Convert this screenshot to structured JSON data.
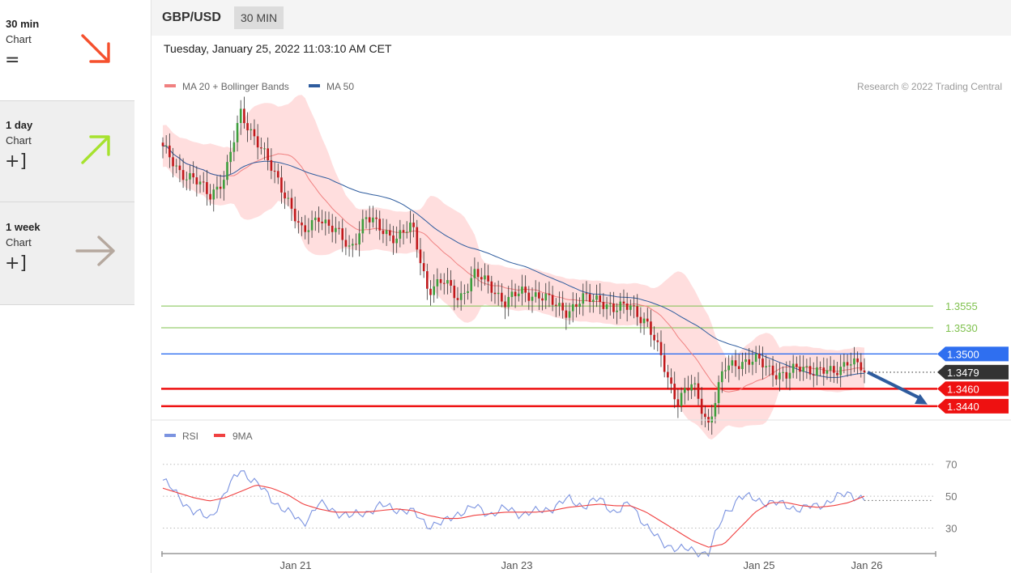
{
  "sidebar": {
    "items": [
      {
        "name": "30 min",
        "sub": "Chart",
        "symbol": "=",
        "arrow": "down-right-arrow-icon",
        "color": "#f5502d"
      },
      {
        "name": "1 day",
        "sub": "Chart",
        "symbol": "+]",
        "arrow": "up-right-arrow-icon",
        "color": "#a6e22e"
      },
      {
        "name": "1 week",
        "sub": "Chart",
        "symbol": "+]",
        "arrow": "right-arrow-icon",
        "color": "#b5a89e"
      }
    ]
  },
  "header": {
    "symbol": "GBP/USD",
    "timeframe": "30 MIN",
    "datetime": "Tuesday, January 25, 2022 11:03:10 AM CET"
  },
  "legend": {
    "ma20": "MA 20 + Bollinger Bands",
    "ma50": "MA 50",
    "credit": "Research © 2022 Trading Central",
    "rsi": "RSI",
    "rsi_ma": "9MA"
  },
  "colors": {
    "ma20": "#f08080",
    "ma50": "#2e5c9e",
    "band": "#ffdede",
    "up": "#3d9e3d",
    "down": "#c0181b",
    "rsi": "#7b93e0",
    "rsi_ma": "#f04040",
    "arrow": "#2e5c9e"
  },
  "chart_data": [
    {
      "type": "candlestick",
      "x_ticks": [
        "Jan 21",
        "Jan 23",
        "Jan 25",
        "Jan 26"
      ],
      "ylim": [
        1.3425,
        1.3795
      ],
      "levels": [
        {
          "label": "1.3555",
          "value": 1.3555,
          "color": "#7fc14e",
          "style": "thin"
        },
        {
          "label": "1.3530",
          "value": 1.353,
          "color": "#7fc14e",
          "style": "thin"
        },
        {
          "label": "1.3500",
          "value": 1.35,
          "color": "#2f6ff0",
          "style": "tag"
        },
        {
          "label": "1.3479",
          "value": 1.3479,
          "color": "#333333",
          "style": "current"
        },
        {
          "label": "1.3460",
          "value": 1.346,
          "color": "#ee1111",
          "style": "tag"
        },
        {
          "label": "1.3440",
          "value": 1.344,
          "color": "#ee1111",
          "style": "tag"
        }
      ],
      "anchors": [
        1.3735,
        1.3712,
        1.37,
        1.3682,
        1.3705,
        1.3775,
        1.3748,
        1.371,
        1.368,
        1.3635,
        1.366,
        1.3642,
        1.362,
        1.3658,
        1.3642,
        1.3635,
        1.3645,
        1.3575,
        1.3582,
        1.3565,
        1.359,
        1.358,
        1.3558,
        1.3572,
        1.3568,
        1.3558,
        1.355,
        1.3562,
        1.3565,
        1.3548,
        1.3558,
        1.3535,
        1.3495,
        1.3445,
        1.3465,
        1.342,
        1.3482,
        1.3492,
        1.3492,
        1.3482,
        1.3475,
        1.3485,
        1.3482,
        1.3476,
        1.3496,
        1.3479
      ]
    },
    {
      "type": "line",
      "title": "RSI",
      "y_ticks": [
        70,
        50,
        30
      ],
      "ylim": [
        15,
        80
      ],
      "rsi": [
        60,
        50,
        40,
        36,
        52,
        67,
        58,
        48,
        40,
        33,
        45,
        41,
        37,
        40,
        44,
        42,
        40,
        32,
        33,
        40,
        43,
        39,
        42,
        39,
        40,
        43,
        48,
        44,
        48,
        40,
        45,
        32,
        20,
        18,
        15,
        15,
        38,
        50,
        48,
        46,
        44,
        42,
        44,
        48,
        52,
        48
      ],
      "ma": [
        55,
        52,
        49,
        47,
        49,
        53,
        57,
        55,
        51,
        45,
        42,
        40,
        40,
        40,
        41,
        42,
        41,
        38,
        36,
        36,
        38,
        39,
        40,
        40,
        40,
        41,
        43,
        44,
        45,
        44,
        44,
        40,
        34,
        28,
        22,
        18,
        20,
        30,
        40,
        46,
        46,
        44,
        43,
        44,
        46,
        50
      ]
    }
  ]
}
